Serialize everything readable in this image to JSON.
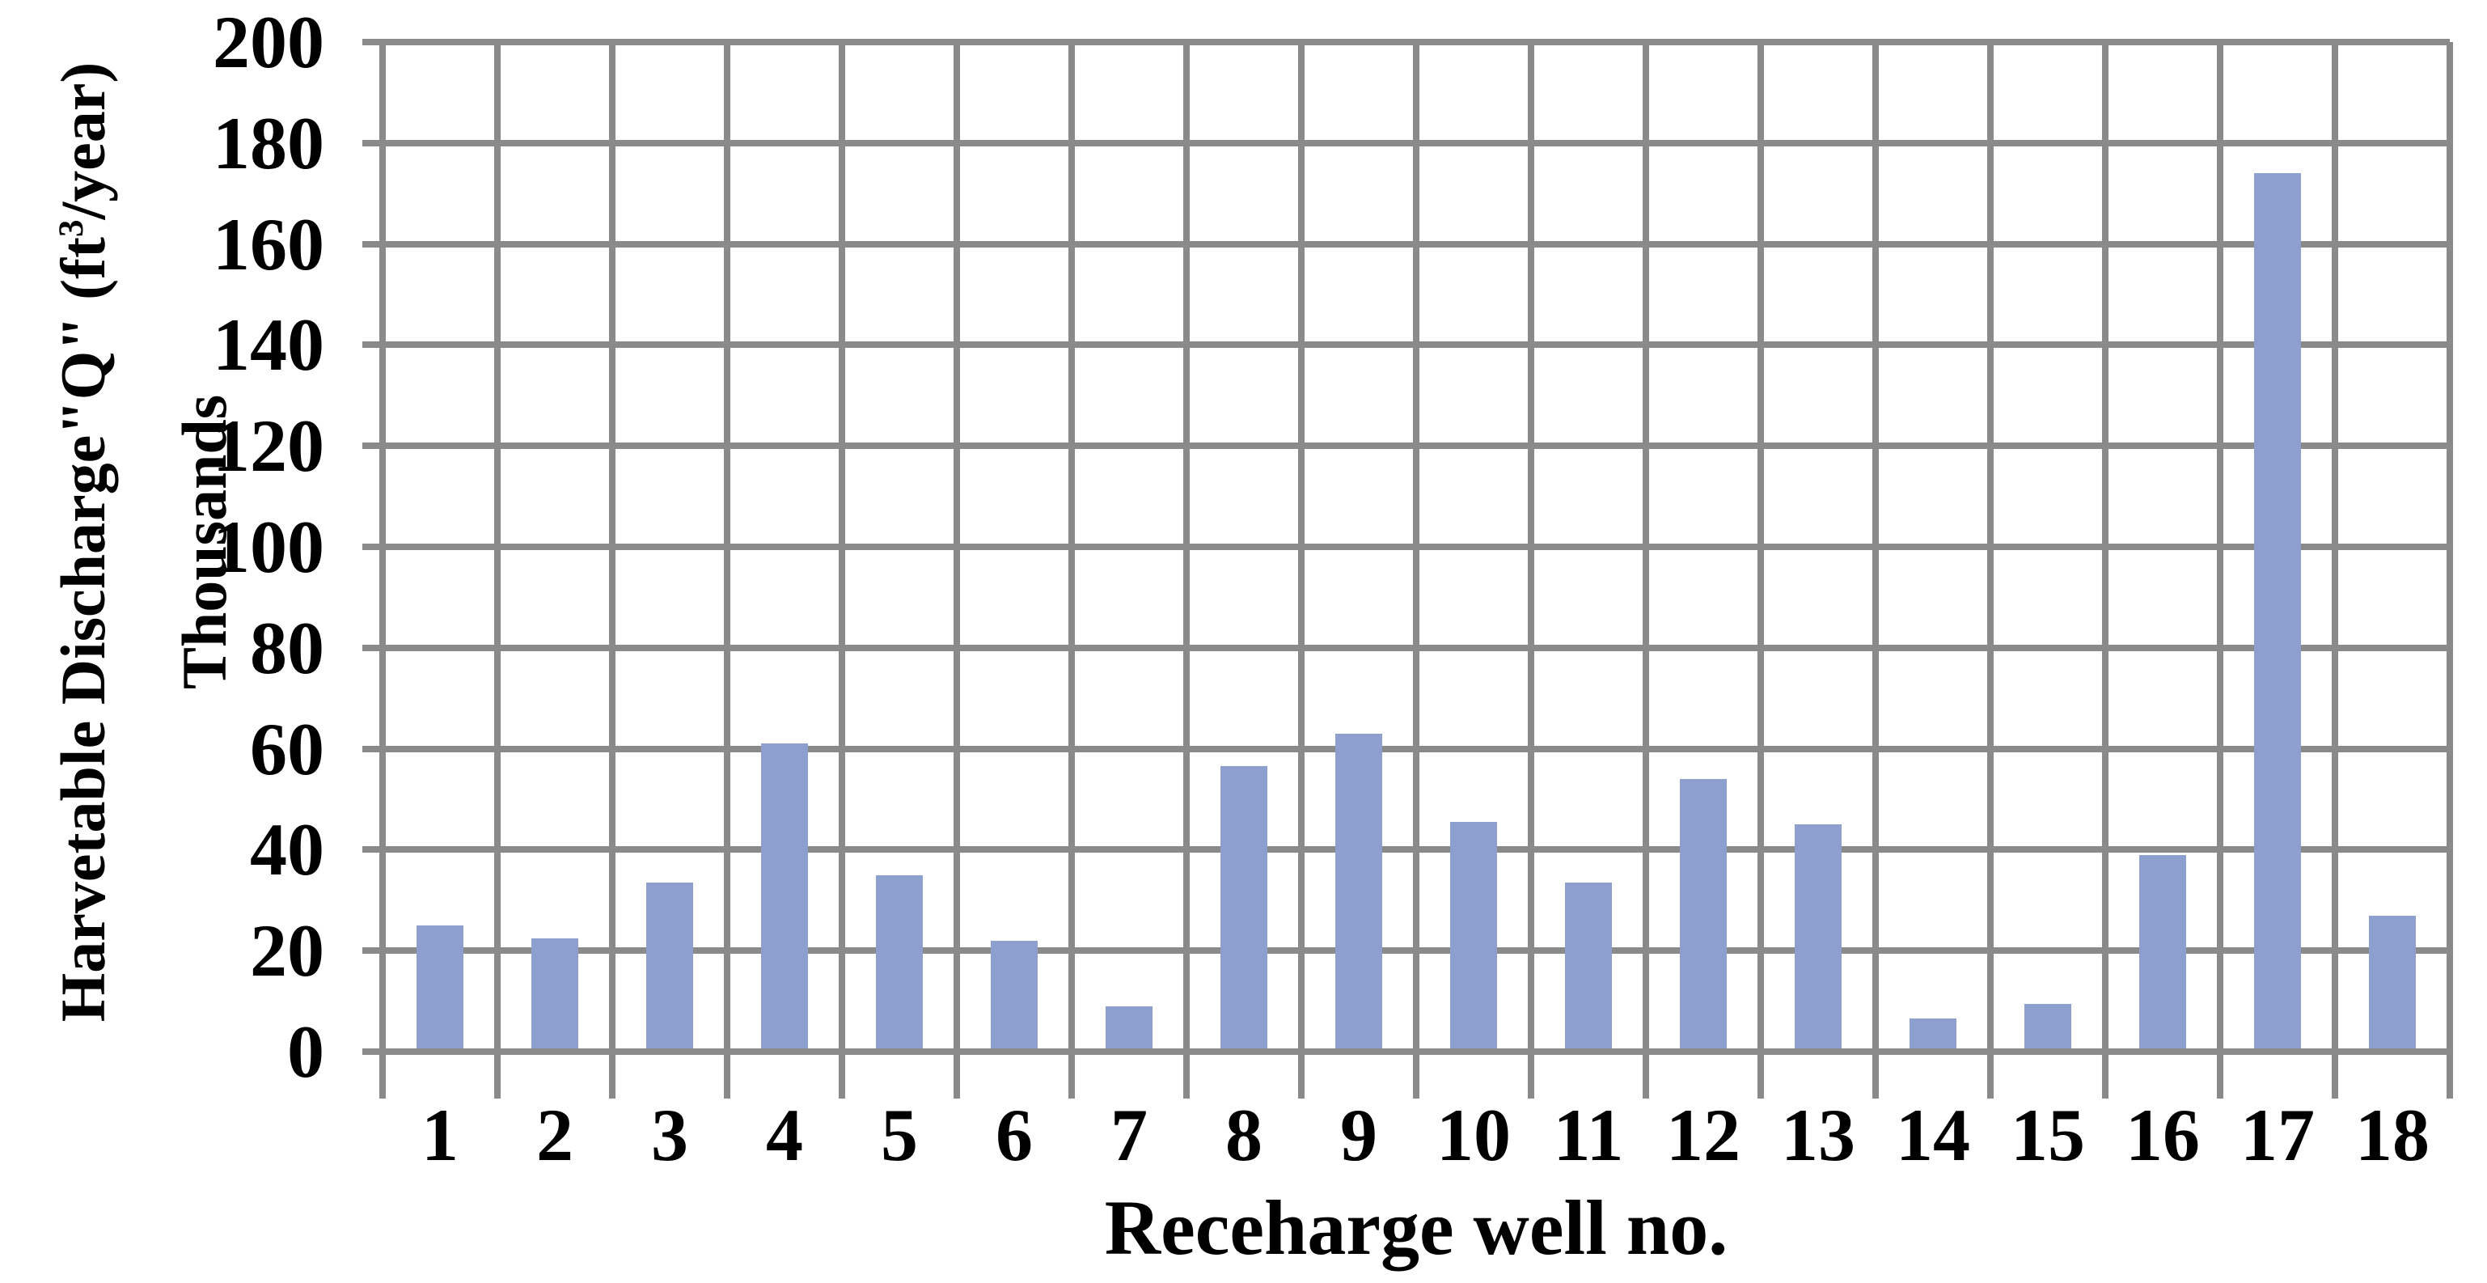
{
  "chart_data": {
    "type": "bar",
    "categories": [
      "1",
      "2",
      "3",
      "4",
      "5",
      "6",
      "7",
      "8",
      "9",
      "10",
      "11",
      "12",
      "13",
      "14",
      "15",
      "16",
      "17",
      "18"
    ],
    "values": [
      25,
      22.5,
      33.5,
      61,
      35,
      22,
      9,
      56.5,
      63,
      45.5,
      33.5,
      54,
      45,
      6.5,
      9.5,
      39,
      174,
      27
    ],
    "xlabel": "Receharge well no.",
    "ylabel": "Harvetable Discharge\"Q\" (ft³/year) Thousands",
    "ylabel_parts": {
      "prefix": "Harvetable Discharge\"Q\" (ft",
      "sup": "3",
      "suffix": "/year)",
      "line2": "Thousands"
    },
    "yticks": [
      "0",
      "20",
      "40",
      "60",
      "80",
      "100",
      "120",
      "140",
      "160",
      "180",
      "200"
    ],
    "ylim": [
      0,
      200
    ],
    "ytick_step": 20,
    "grid": true,
    "legend": false,
    "colors": {
      "bar": "#8C9FCF",
      "grid": "#8A8A8A",
      "text": "#000000",
      "background": "#FFFFFF"
    }
  }
}
